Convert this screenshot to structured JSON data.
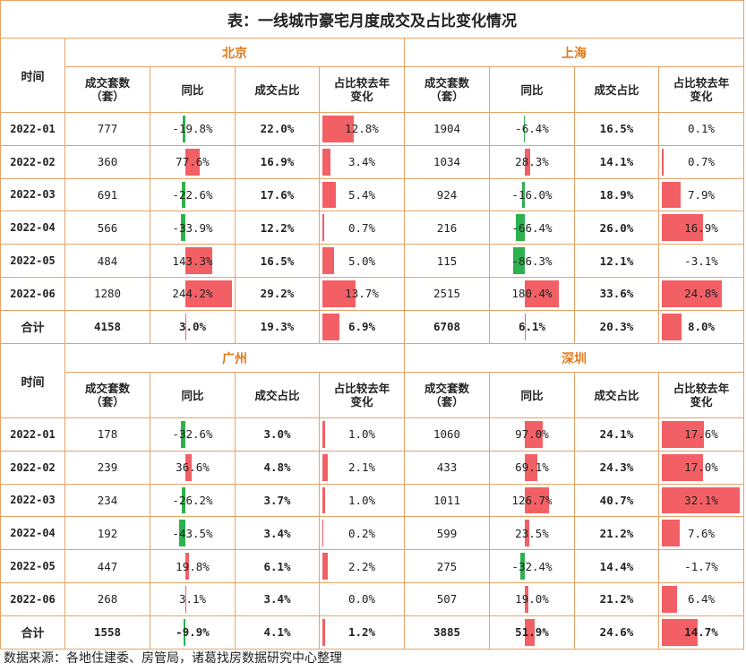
{
  "title": "表：一线城市豪宅月度成交及占比变化情况",
  "headers": {
    "time": "时间",
    "units": "成交套数\n（套）",
    "yoy": "同比",
    "share": "成交占比",
    "share_change": "占比较去年\n变化"
  },
  "total_label": "合计",
  "source": "数据来源：各地住建委、房管局，诸葛找房数据研究中心整理",
  "colors": {
    "positive": "#f26065",
    "negative": "#2db14f",
    "border": "#e8a368",
    "city": "#e07a1f"
  },
  "sections": [
    {
      "cities": [
        {
          "name": "北京",
          "rows": [
            {
              "units": "777",
              "yoy": "-19.8%",
              "yoy_v": -19.8,
              "share": "22.0%",
              "chg": "12.8%",
              "chg_v": 12.8
            },
            {
              "units": "360",
              "yoy": "77.6%",
              "yoy_v": 77.6,
              "share": "16.9%",
              "chg": "3.4%",
              "chg_v": 3.4
            },
            {
              "units": "691",
              "yoy": "-22.6%",
              "yoy_v": -22.6,
              "share": "17.6%",
              "chg": "5.4%",
              "chg_v": 5.4
            },
            {
              "units": "566",
              "yoy": "-33.9%",
              "yoy_v": -33.9,
              "share": "12.2%",
              "chg": "0.7%",
              "chg_v": 0.7
            },
            {
              "units": "484",
              "yoy": "143.3%",
              "yoy_v": 143.3,
              "share": "16.5%",
              "chg": "5.0%",
              "chg_v": 5.0
            },
            {
              "units": "1280",
              "yoy": "244.2%",
              "yoy_v": 244.2,
              "share": "29.2%",
              "chg": "13.7%",
              "chg_v": 13.7
            }
          ],
          "total": {
            "units": "4158",
            "yoy": "3.0%",
            "yoy_v": 3.0,
            "share": "19.3%",
            "chg": "6.9%",
            "chg_v": 6.9
          }
        },
        {
          "name": "上海",
          "rows": [
            {
              "units": "1904",
              "yoy": "-6.4%",
              "yoy_v": -6.4,
              "share": "16.5%",
              "chg": "0.1%",
              "chg_v": 0.1
            },
            {
              "units": "1034",
              "yoy": "28.3%",
              "yoy_v": 28.3,
              "share": "14.1%",
              "chg": "0.7%",
              "chg_v": 0.7
            },
            {
              "units": "924",
              "yoy": "-16.0%",
              "yoy_v": -16.0,
              "share": "18.9%",
              "chg": "7.9%",
              "chg_v": 7.9
            },
            {
              "units": "216",
              "yoy": "-66.4%",
              "yoy_v": -66.4,
              "share": "26.0%",
              "chg": "16.9%",
              "chg_v": 16.9
            },
            {
              "units": "115",
              "yoy": "-86.3%",
              "yoy_v": -86.3,
              "share": "12.1%",
              "chg": "-3.1%",
              "chg_v": -3.1
            },
            {
              "units": "2515",
              "yoy": "180.4%",
              "yoy_v": 180.4,
              "share": "33.6%",
              "chg": "24.8%",
              "chg_v": 24.8
            }
          ],
          "total": {
            "units": "6708",
            "yoy": "6.1%",
            "yoy_v": 6.1,
            "share": "20.3%",
            "chg": "8.0%",
            "chg_v": 8.0
          }
        }
      ],
      "dates": [
        "2022-01",
        "2022-02",
        "2022-03",
        "2022-04",
        "2022-05",
        "2022-06"
      ]
    },
    {
      "cities": [
        {
          "name": "广州",
          "rows": [
            {
              "units": "178",
              "yoy": "-32.6%",
              "yoy_v": -32.6,
              "share": "3.0%",
              "chg": "1.0%",
              "chg_v": 1.0
            },
            {
              "units": "239",
              "yoy": "36.6%",
              "yoy_v": 36.6,
              "share": "4.8%",
              "chg": "2.1%",
              "chg_v": 2.1
            },
            {
              "units": "234",
              "yoy": "-26.2%",
              "yoy_v": -26.2,
              "share": "3.7%",
              "chg": "1.0%",
              "chg_v": 1.0
            },
            {
              "units": "192",
              "yoy": "-43.5%",
              "yoy_v": -43.5,
              "share": "3.4%",
              "chg": "0.2%",
              "chg_v": 0.2
            },
            {
              "units": "447",
              "yoy": "19.8%",
              "yoy_v": 19.8,
              "share": "6.1%",
              "chg": "2.2%",
              "chg_v": 2.2
            },
            {
              "units": "268",
              "yoy": "3.1%",
              "yoy_v": 3.1,
              "share": "3.4%",
              "chg": "0.0%",
              "chg_v": 0.0
            }
          ],
          "total": {
            "units": "1558",
            "yoy": "-9.9%",
            "yoy_v": -9.9,
            "share": "4.1%",
            "chg": "1.2%",
            "chg_v": 1.2
          }
        },
        {
          "name": "深圳",
          "rows": [
            {
              "units": "1060",
              "yoy": "97.0%",
              "yoy_v": 97.0,
              "share": "24.1%",
              "chg": "17.6%",
              "chg_v": 17.6
            },
            {
              "units": "433",
              "yoy": "69.1%",
              "yoy_v": 69.1,
              "share": "24.3%",
              "chg": "17.0%",
              "chg_v": 17.0
            },
            {
              "units": "1011",
              "yoy": "126.7%",
              "yoy_v": 126.7,
              "share": "40.7%",
              "chg": "32.1%",
              "chg_v": 32.1
            },
            {
              "units": "599",
              "yoy": "23.5%",
              "yoy_v": 23.5,
              "share": "21.2%",
              "chg": "7.6%",
              "chg_v": 7.6
            },
            {
              "units": "275",
              "yoy": "-32.4%",
              "yoy_v": -32.4,
              "share": "14.4%",
              "chg": "-1.7%",
              "chg_v": -1.7
            },
            {
              "units": "507",
              "yoy": "19.0%",
              "yoy_v": 19.0,
              "share": "21.2%",
              "chg": "6.4%",
              "chg_v": 6.4
            }
          ],
          "total": {
            "units": "3885",
            "yoy": "51.9%",
            "yoy_v": 51.9,
            "share": "24.6%",
            "chg": "14.7%",
            "chg_v": 14.7
          }
        }
      ],
      "dates": [
        "2022-01",
        "2022-02",
        "2022-03",
        "2022-04",
        "2022-05",
        "2022-06"
      ]
    }
  ]
}
